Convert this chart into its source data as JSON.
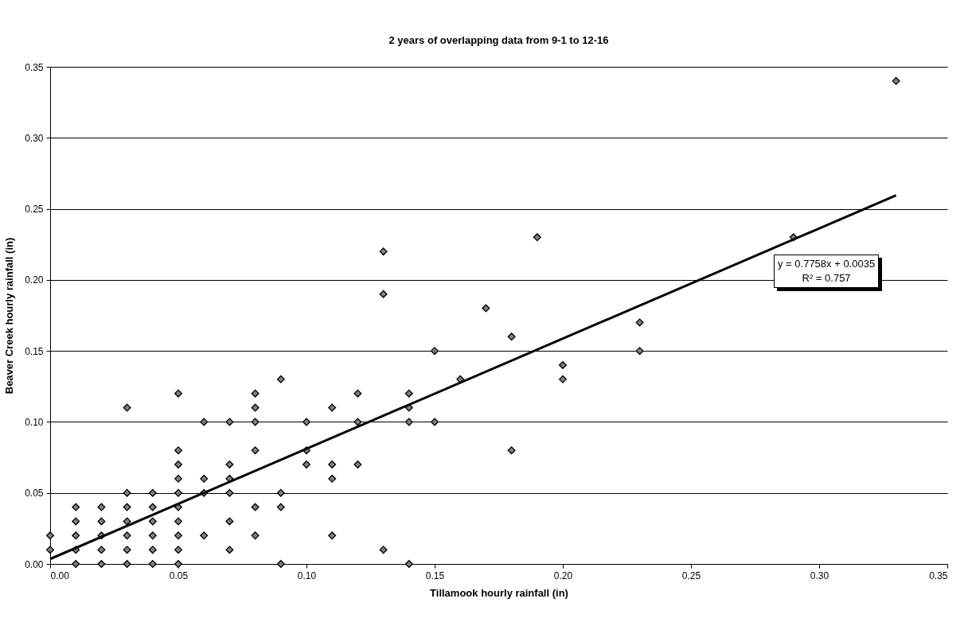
{
  "chart_data": {
    "type": "scatter",
    "title": "2 years of overlapping data from 9-1 to 12-16",
    "xlabel": "Tillamook hourly rainfall (in)",
    "ylabel": "Beaver Creek hourly rainfall (in)",
    "xlim": [
      0,
      0.35
    ],
    "xticks": [
      {
        "value": 0,
        "label": "0.00"
      },
      {
        "value": 0.05,
        "label": "0.05"
      },
      {
        "value": 0.1,
        "label": "0.10"
      },
      {
        "value": 0.15,
        "label": "0.15"
      },
      {
        "value": 0.2,
        "label": "0.20"
      },
      {
        "value": 0.25,
        "label": "0.25"
      },
      {
        "value": 0.3,
        "label": "0.30"
      },
      {
        "value": 0.35,
        "label": "0.35"
      }
    ],
    "ylim": [
      0,
      0.35
    ],
    "yticks": [
      {
        "value": 0,
        "label": "0.00"
      },
      {
        "value": 0.05,
        "label": "0.05"
      },
      {
        "value": 0.1,
        "label": "0.10"
      },
      {
        "value": 0.15,
        "label": "0.15"
      },
      {
        "value": 0.2,
        "label": "0.20"
      },
      {
        "value": 0.25,
        "label": "0.25"
      },
      {
        "value": 0.3,
        "label": "0.30"
      },
      {
        "value": 0.35,
        "label": "0.35"
      }
    ],
    "grid": "y",
    "series": [
      {
        "color": "#808080",
        "marker": "diamond",
        "x": [
          0,
          0,
          0.01,
          0.01,
          0.01,
          0.01,
          0.01,
          0.02,
          0.02,
          0.02,
          0.02,
          0.02,
          0.03,
          0.03,
          0.03,
          0.03,
          0.03,
          0.03,
          0.03,
          0.04,
          0.04,
          0.04,
          0.04,
          0.04,
          0.04,
          0.05,
          0.05,
          0.05,
          0.05,
          0.05,
          0.05,
          0.05,
          0.05,
          0.05,
          0.05,
          0.06,
          0.06,
          0.06,
          0.06,
          0.07,
          0.07,
          0.07,
          0.07,
          0.07,
          0.07,
          0.08,
          0.08,
          0.08,
          0.08,
          0.08,
          0.08,
          0.09,
          0.09,
          0.09,
          0.09,
          0.1,
          0.1,
          0.1,
          0.11,
          0.11,
          0.11,
          0.11,
          0.12,
          0.12,
          0.12,
          0.13,
          0.13,
          0.13,
          0.14,
          0.14,
          0.14,
          0.14,
          0.15,
          0.15,
          0.16,
          0.17,
          0.18,
          0.18,
          0.19,
          0.2,
          0.2,
          0.23,
          0.23,
          0.29,
          0.33
        ],
        "values": [
          0.02,
          0.01,
          0.04,
          0.03,
          0.02,
          0.01,
          0,
          0.04,
          0.03,
          0.02,
          0.01,
          0,
          0.11,
          0.05,
          0.04,
          0.03,
          0.02,
          0.01,
          0,
          0.05,
          0.04,
          0.03,
          0.02,
          0.01,
          0,
          0.12,
          0.08,
          0.07,
          0.06,
          0.05,
          0.04,
          0.03,
          0.02,
          0.01,
          0,
          0.1,
          0.06,
          0.05,
          0.02,
          0.1,
          0.07,
          0.06,
          0.05,
          0.03,
          0.01,
          0.12,
          0.11,
          0.1,
          0.08,
          0.04,
          0.02,
          0.13,
          0.05,
          0.04,
          0,
          0.1,
          0.08,
          0.07,
          0.11,
          0.07,
          0.06,
          0.02,
          0.12,
          0.1,
          0.07,
          0.22,
          0.19,
          0.01,
          0.12,
          0.11,
          0.1,
          0,
          0.15,
          0.1,
          0.13,
          0.18,
          0.16,
          0.08,
          0.23,
          0.14,
          0.13,
          0.17,
          0.15,
          0.23,
          0.34
        ]
      },
      {
        "type": "line",
        "color": "#000000",
        "x": [
          0,
          0.33
        ],
        "values": [
          0.0035,
          0.2595
        ]
      }
    ],
    "annotations": [
      "y = 0.7758x + 0.0035",
      "R² = 0.757"
    ]
  }
}
